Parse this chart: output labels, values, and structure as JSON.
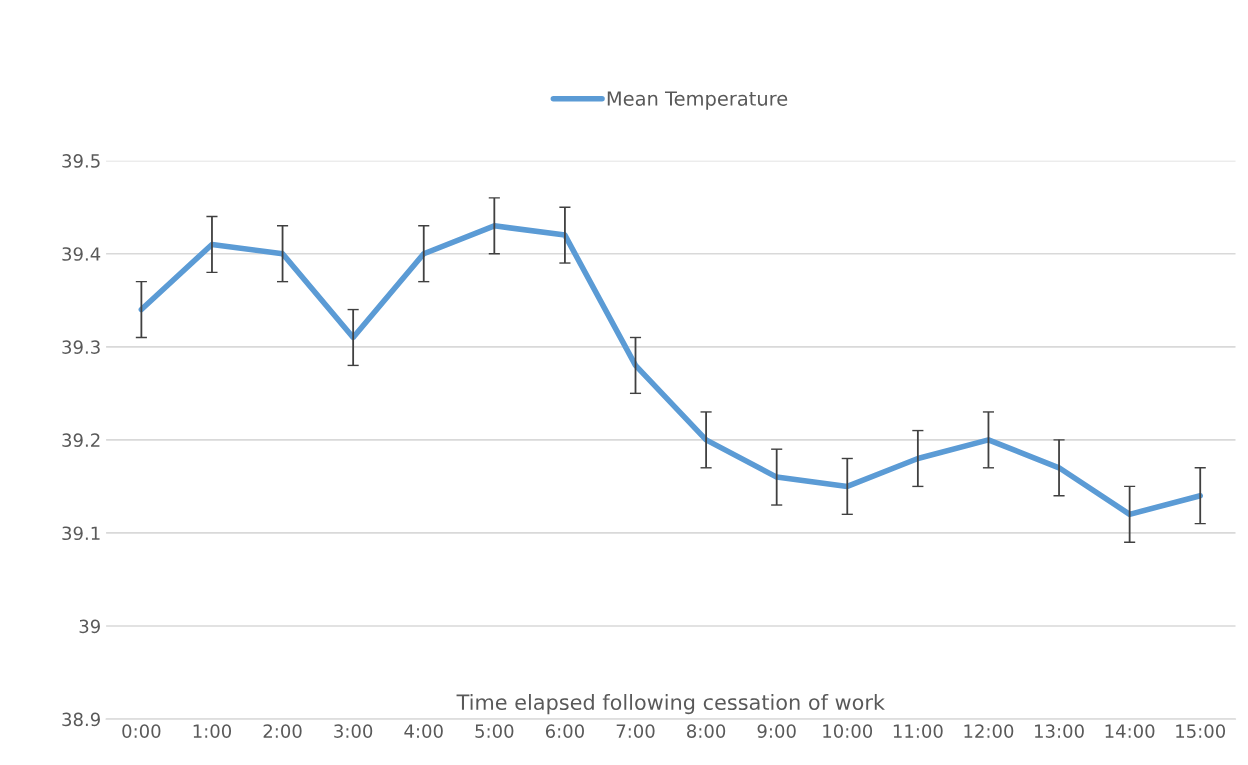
{
  "chart_data": {
    "type": "line",
    "xlabel": "Time elapsed following cessation of work",
    "categories": [
      "0:00",
      "1:00",
      "2:00",
      "3:00",
      "4:00",
      "5:00",
      "6:00",
      "7:00",
      "8:00",
      "9:00",
      "10:00",
      "11:00",
      "12:00",
      "13:00",
      "14:00",
      "15:00"
    ],
    "series": [
      {
        "name": "Mean Temperature",
        "color": "#5b9bd5",
        "values": [
          39.34,
          39.41,
          39.4,
          39.31,
          39.4,
          39.43,
          39.42,
          39.28,
          39.2,
          39.16,
          39.15,
          39.18,
          39.2,
          39.17,
          39.12,
          39.14
        ],
        "errors": [
          0.03,
          0.03,
          0.03,
          0.03,
          0.03,
          0.03,
          0.03,
          0.03,
          0.03,
          0.03,
          0.03,
          0.03,
          0.03,
          0.03,
          0.03,
          0.03
        ]
      }
    ],
    "ylim": [
      38.9,
      39.5
    ],
    "yticks": [
      38.9,
      39,
      39.1,
      39.2,
      39.3,
      39.4,
      39.5
    ],
    "grid": "y",
    "legend": "top",
    "marker": "none",
    "line_style": "solid"
  }
}
